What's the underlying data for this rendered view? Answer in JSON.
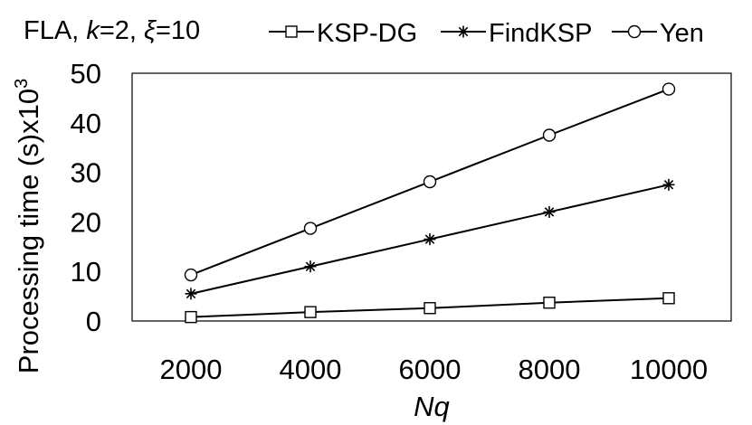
{
  "chart_data": {
    "type": "line",
    "title_parts": [
      "FLA, ",
      "k",
      "=2, ",
      "ξ",
      "=10"
    ],
    "xlabel": "Nq",
    "ylabel": "Processing time (s)x10",
    "ylabel_superscript": "3",
    "x": [
      2000,
      4000,
      6000,
      8000,
      10000
    ],
    "x_tick_labels": [
      "2000",
      "4000",
      "6000",
      "8000",
      "10000"
    ],
    "ylim": [
      0,
      50
    ],
    "y_ticks": [
      0,
      10,
      20,
      30,
      40,
      50
    ],
    "y_tick_labels": [
      "0",
      "10",
      "20",
      "30",
      "40",
      "50"
    ],
    "grid": false,
    "legend_position": "top",
    "series": [
      {
        "name": "KSP-DG",
        "marker": "square",
        "color": "#000000",
        "values": [
          0.8,
          1.8,
          2.6,
          3.7,
          4.6
        ]
      },
      {
        "name": "FindKSP",
        "marker": "asterisk",
        "color": "#000000",
        "values": [
          5.5,
          11.0,
          16.5,
          22.0,
          27.5
        ]
      },
      {
        "name": "Yen",
        "marker": "circle",
        "color": "#000000",
        "values": [
          9.3,
          18.7,
          28.1,
          37.5,
          46.8
        ]
      }
    ]
  }
}
